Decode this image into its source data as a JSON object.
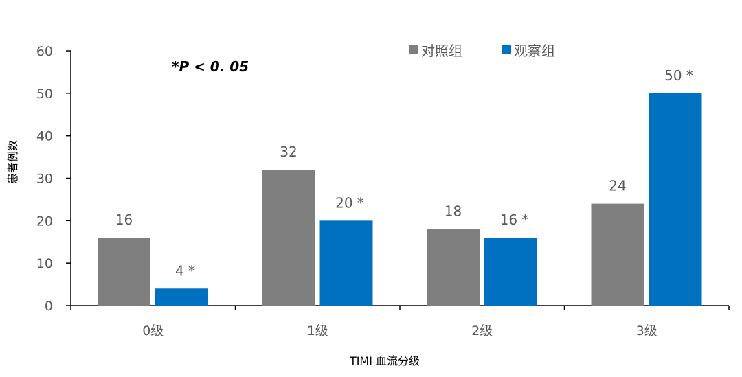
{
  "chart_data": {
    "type": "bar",
    "title": "",
    "xlabel": "TIMI 血流分级",
    "ylabel": "患者例数",
    "ylim": [
      0,
      60
    ],
    "yticks": [
      0,
      10,
      20,
      30,
      40,
      50,
      60
    ],
    "categories": [
      "0级",
      "1级",
      "2级",
      "3级"
    ],
    "series": [
      {
        "name": "对照组",
        "color": "#7f7f7f",
        "values": [
          16,
          32,
          18,
          24
        ],
        "labels": [
          "16",
          "32",
          "18",
          "24"
        ]
      },
      {
        "name": "观察组",
        "color": "#0070c0",
        "values": [
          4,
          20,
          16,
          50
        ],
        "labels": [
          "4 *",
          "20 *",
          "16 *",
          "50 *"
        ]
      }
    ],
    "annotation": "*P < 0. 05",
    "legend_position": "top-right",
    "grid": false
  }
}
